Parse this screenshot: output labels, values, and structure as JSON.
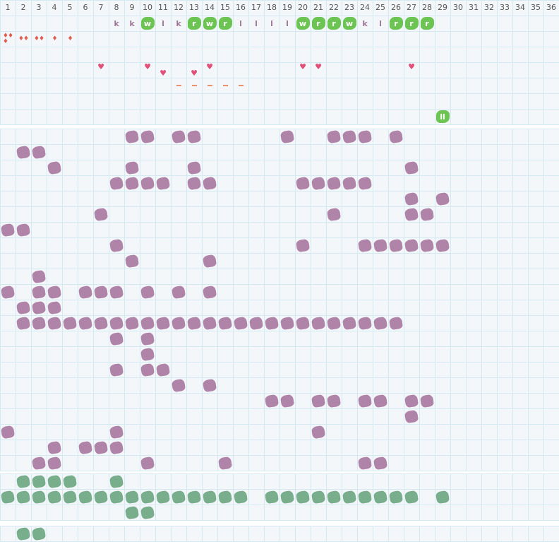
{
  "columns": [
    "1",
    "2",
    "3",
    "4",
    "5",
    "6",
    "7",
    "8",
    "9",
    "10",
    "11",
    "12",
    "13",
    "14",
    "15",
    "16",
    "17",
    "18",
    "19",
    "20",
    "21",
    "22",
    "23",
    "24",
    "25",
    "26",
    "27",
    "28",
    "29",
    "30",
    "31",
    "32",
    "33",
    "34",
    "35",
    "36"
  ],
  "colors": {
    "purple": "#b084a9",
    "sage": "#78ae8c",
    "green": "#6cc553",
    "heart": "#e05078",
    "drop": "#e05a4e",
    "dash": "#f0906a",
    "grid": "#d5e9f3"
  },
  "top_section": {
    "letters": [
      {
        "col": 8,
        "text": "k",
        "green": false
      },
      {
        "col": 9,
        "text": "k",
        "green": false
      },
      {
        "col": 10,
        "text": "w",
        "green": true
      },
      {
        "col": 11,
        "text": "l",
        "green": false
      },
      {
        "col": 12,
        "text": "k",
        "green": false
      },
      {
        "col": 13,
        "text": "r",
        "green": true
      },
      {
        "col": 14,
        "text": "w",
        "green": true
      },
      {
        "col": 15,
        "text": "r",
        "green": true
      },
      {
        "col": 16,
        "text": "l",
        "green": false
      },
      {
        "col": 17,
        "text": "l",
        "green": false
      },
      {
        "col": 18,
        "text": "l",
        "green": false
      },
      {
        "col": 19,
        "text": "l",
        "green": false
      },
      {
        "col": 20,
        "text": "w",
        "green": true
      },
      {
        "col": 21,
        "text": "r",
        "green": true
      },
      {
        "col": 22,
        "text": "r",
        "green": true
      },
      {
        "col": 23,
        "text": "w",
        "green": true
      },
      {
        "col": 24,
        "text": "k",
        "green": false
      },
      {
        "col": 25,
        "text": "l",
        "green": false
      },
      {
        "col": 26,
        "text": "r",
        "green": true
      },
      {
        "col": 27,
        "text": "r",
        "green": true
      },
      {
        "col": 28,
        "text": "r",
        "green": true
      }
    ],
    "drops": [
      {
        "col": 1,
        "count": 3
      },
      {
        "col": 2,
        "count": 2
      },
      {
        "col": 3,
        "count": 2
      },
      {
        "col": 4,
        "count": 1
      },
      {
        "col": 5,
        "count": 1
      }
    ],
    "hearts_high": [
      7,
      10,
      14,
      20,
      21,
      27
    ],
    "hearts_low": [
      11,
      13
    ],
    "dashes": [
      12,
      13,
      14,
      15,
      16
    ],
    "marker": {
      "col": 29,
      "text": "ll"
    }
  },
  "purple_section": [
    [
      9,
      10,
      12,
      13,
      19,
      22,
      23,
      24,
      26
    ],
    [
      2,
      3
    ],
    [
      4,
      9,
      13,
      27
    ],
    [
      8,
      9,
      10,
      11,
      13,
      14,
      20,
      21,
      22,
      23,
      24
    ],
    [
      27,
      29
    ],
    [
      7,
      22,
      27,
      28
    ],
    [
      1,
      2
    ],
    [
      8,
      20,
      24,
      25,
      26,
      27,
      28,
      29
    ],
    [
      9,
      14
    ],
    [
      3
    ],
    [
      1,
      3,
      4,
      6,
      7,
      8,
      10,
      12,
      14
    ],
    [
      2,
      3,
      4
    ],
    [
      2,
      3,
      4,
      5,
      6,
      7,
      8,
      9,
      10,
      11,
      12,
      13,
      14,
      15,
      16,
      17,
      18,
      19,
      20,
      21,
      22,
      23,
      24,
      25,
      26
    ],
    [
      8,
      10
    ],
    [
      10
    ],
    [
      8,
      10,
      11
    ],
    [
      12,
      14
    ],
    [
      18,
      19,
      21,
      22,
      24,
      25,
      27,
      28
    ],
    [
      27
    ],
    [
      1,
      8,
      21
    ],
    [
      4,
      6,
      7,
      8
    ],
    [
      3,
      4,
      10,
      15,
      24,
      25
    ]
  ],
  "green_section": [
    [
      2,
      3,
      4,
      5,
      8
    ],
    [
      1,
      2,
      3,
      4,
      5,
      6,
      7,
      8,
      9,
      10,
      11,
      12,
      13,
      14,
      15,
      16,
      18,
      19,
      20,
      21,
      22,
      23,
      24,
      25,
      26,
      27,
      29
    ],
    [
      9,
      10
    ]
  ],
  "bottom_section": [
    [
      2,
      3
    ]
  ]
}
